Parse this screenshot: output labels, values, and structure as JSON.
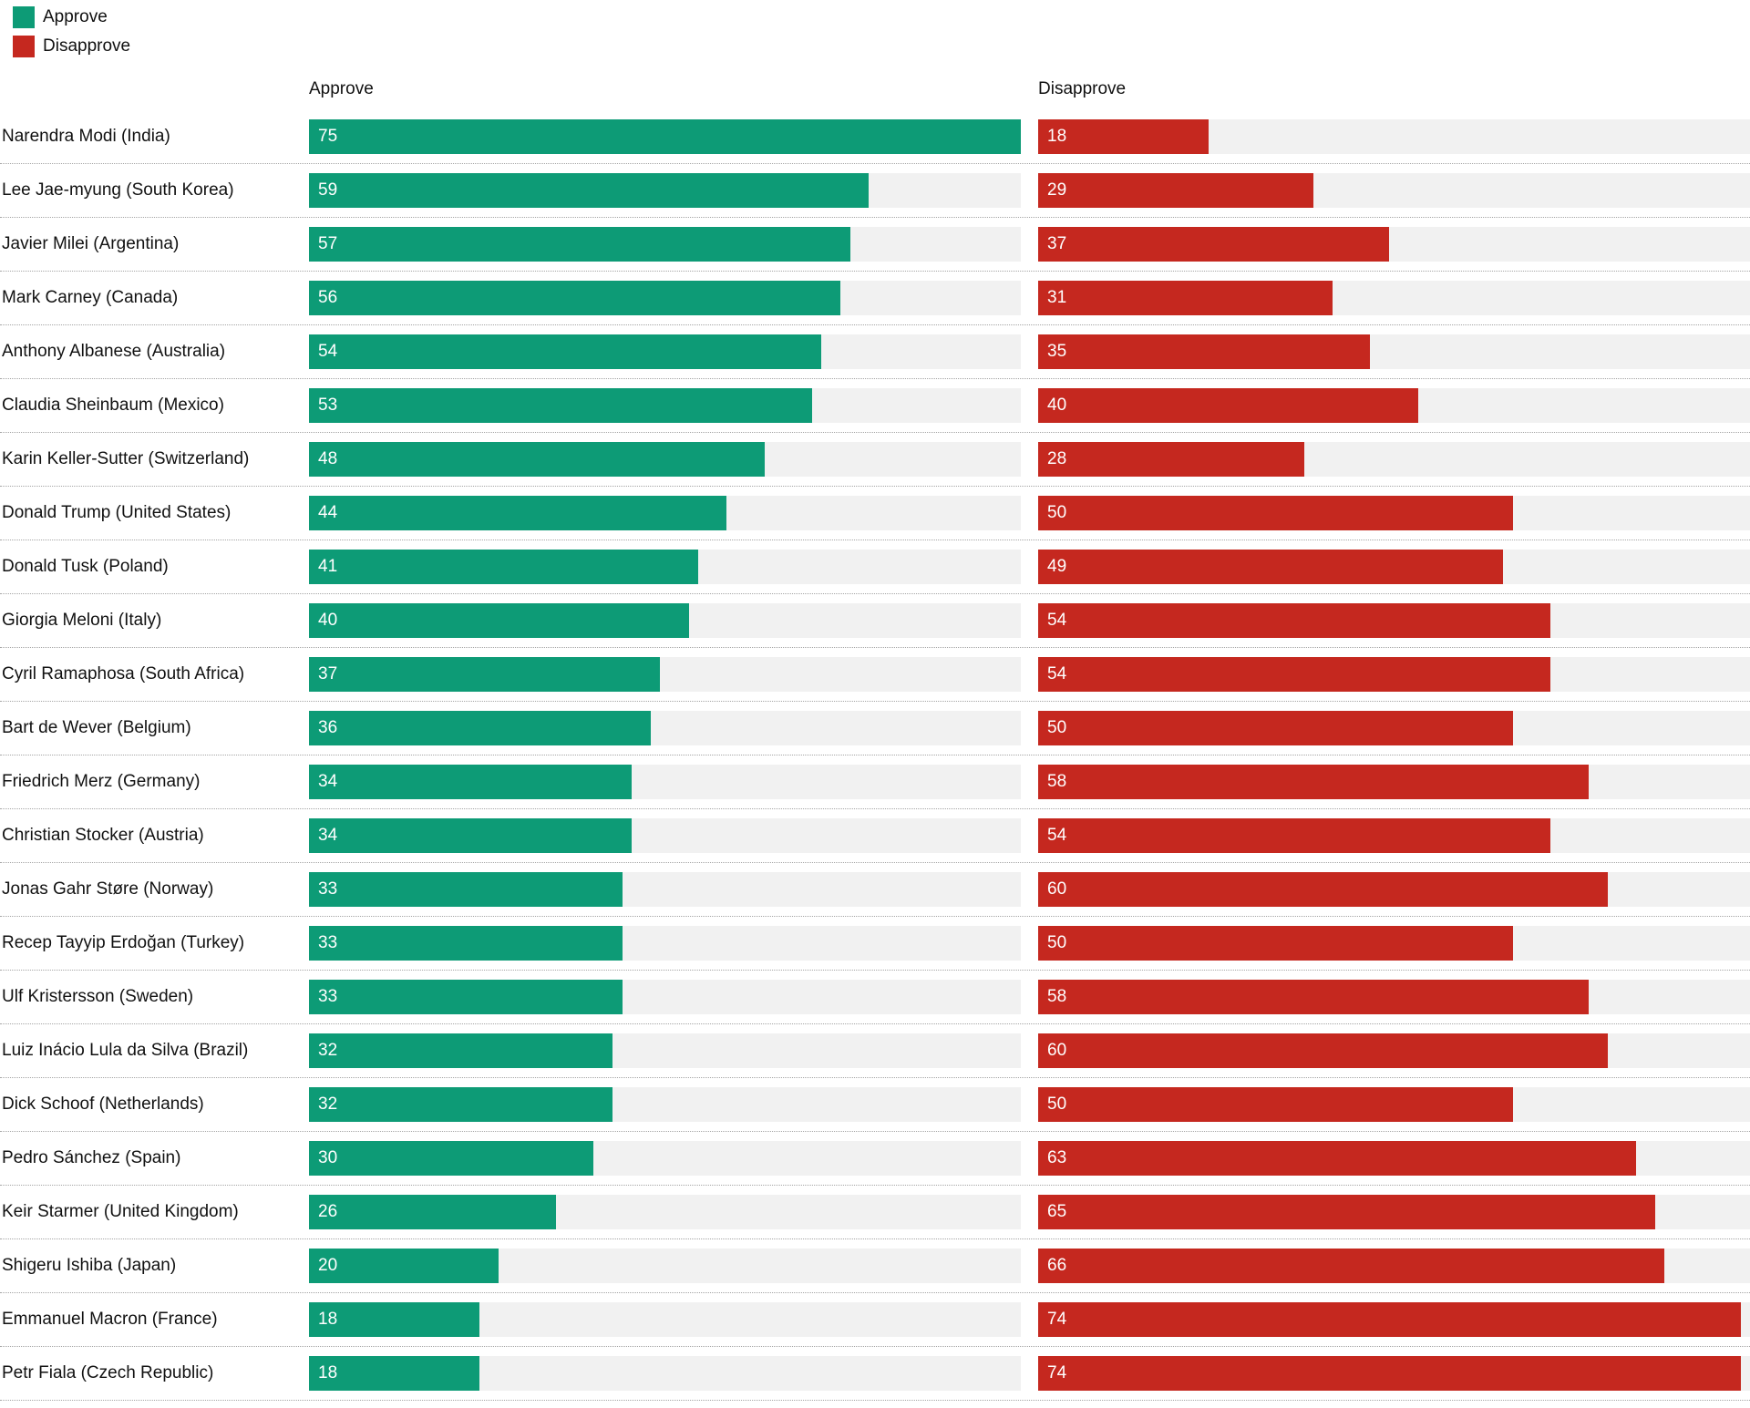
{
  "chart_data": {
    "type": "bar",
    "orientation": "horizontal",
    "xmax": 75,
    "grid": false,
    "legend_position": "top-left",
    "columns": [
      "Approve",
      "Disapprove"
    ],
    "legend": {
      "items": [
        {
          "label": "Approve",
          "color": "#0d9b76"
        },
        {
          "label": "Disapprove",
          "color": "#c5281f"
        }
      ]
    },
    "colors": {
      "approve": "#0d9b76",
      "disapprove": "#c5281f",
      "track": "#f1f1f1",
      "value_text": "#ffffff"
    },
    "categories": [
      "Narendra Modi (India)",
      "Lee Jae-myung (South Korea)",
      "Javier Milei (Argentina)",
      "Mark Carney (Canada)",
      "Anthony Albanese (Australia)",
      "Claudia Sheinbaum (Mexico)",
      "Karin Keller-Sutter (Switzerland)",
      "Donald Trump (United States)",
      "Donald Tusk (Poland)",
      "Giorgia Meloni (Italy)",
      "Cyril Ramaphosa (South Africa)",
      "Bart de Wever (Belgium)",
      "Friedrich Merz (Germany)",
      "Christian Stocker (Austria)",
      "Jonas Gahr Støre (Norway)",
      "Recep Tayyip Erdoğan (Turkey)",
      "Ulf Kristersson (Sweden)",
      "Luiz Inácio Lula da Silva (Brazil)",
      "Dick Schoof (Netherlands)",
      "Pedro Sánchez (Spain)",
      "Keir Starmer (United Kingdom)",
      "Shigeru Ishiba (Japan)",
      "Emmanuel Macron (France)",
      "Petr Fiala (Czech Republic)"
    ],
    "series": [
      {
        "name": "Approve",
        "values": [
          75,
          59,
          57,
          56,
          54,
          53,
          48,
          44,
          41,
          40,
          37,
          36,
          34,
          34,
          33,
          33,
          33,
          32,
          32,
          30,
          26,
          20,
          18,
          18
        ]
      },
      {
        "name": "Disapprove",
        "values": [
          18,
          29,
          37,
          31,
          35,
          40,
          28,
          50,
          49,
          54,
          54,
          50,
          58,
          54,
          60,
          50,
          58,
          60,
          50,
          63,
          65,
          66,
          74,
          74
        ]
      }
    ]
  }
}
